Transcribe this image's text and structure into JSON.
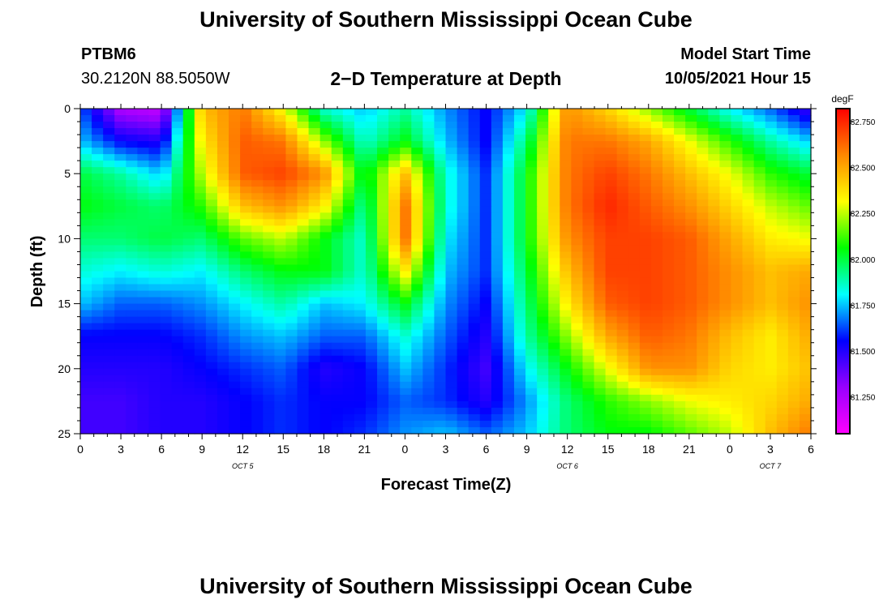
{
  "header": {
    "title": "University of Southern Mississippi Ocean Cube",
    "station_id": "PTBM6",
    "coords": "30.2120N  88.5050W",
    "plot_title": "2−D Temperature at Depth",
    "start_label": "Model Start Time",
    "start_value": "10/05/2021 Hour 15"
  },
  "footer": {
    "title": "University of Southern Mississippi Ocean Cube"
  },
  "chart_data": {
    "type": "heatmap",
    "xlabel": "Forecast Time(Z)",
    "ylabel": "Depth (ft)",
    "x_tick_labels": [
      "0",
      "3",
      "6",
      "9",
      "12",
      "15",
      "18",
      "21",
      "0",
      "3",
      "6",
      "9",
      "12",
      "15",
      "18",
      "21",
      "0",
      "3",
      "6"
    ],
    "x_ticks_hours": [
      0,
      3,
      6,
      9,
      12,
      15,
      18,
      21,
      24,
      27,
      30,
      33,
      36,
      39,
      42,
      45,
      48,
      51,
      54
    ],
    "date_labels": [
      {
        "label": "OCT 5",
        "hour": 12
      },
      {
        "label": "OCT 6",
        "hour": 36
      },
      {
        "label": "OCT 7",
        "hour": 51
      }
    ],
    "xlim_hours": [
      0,
      54
    ],
    "y_ticks": [
      0,
      5,
      10,
      15,
      20,
      25
    ],
    "ylim": [
      25,
      0
    ],
    "colorbar": {
      "unit": "degF",
      "ticks": [
        81.25,
        81.5,
        81.75,
        82.0,
        82.25,
        82.5,
        82.75
      ],
      "tick_labels": [
        "81.250",
        "81.500",
        "81.750",
        "82.000",
        "82.250",
        "82.500",
        "82.750"
      ],
      "range": [
        81.05,
        82.82
      ],
      "colors": [
        "#ff00ff",
        "#9900ff",
        "#0000ff",
        "#00ffff",
        "#00ff00",
        "#ffff00",
        "#ff8800",
        "#ff0000"
      ]
    },
    "depths": [
      0,
      2.5,
      5,
      7.5,
      10,
      12.5,
      15,
      17.5,
      20,
      22.5,
      25
    ],
    "hours": [
      0,
      3,
      6,
      9,
      12,
      15,
      18,
      21,
      24,
      27,
      30,
      33,
      36,
      39,
      42,
      45,
      48,
      51,
      54
    ],
    "values": [
      [
        81.65,
        81.25,
        81.2,
        82.45,
        82.6,
        82.3,
        81.85,
        81.75,
        81.9,
        81.7,
        81.55,
        81.8,
        82.55,
        82.4,
        82.2,
        82.0,
        81.8,
        81.65,
        81.45
      ],
      [
        81.75,
        81.55,
        81.5,
        82.35,
        82.65,
        82.6,
        82.2,
        81.85,
        82.05,
        81.75,
        81.55,
        81.95,
        82.6,
        82.6,
        82.5,
        82.3,
        82.1,
        81.9,
        81.75
      ],
      [
        82.0,
        81.9,
        81.75,
        82.25,
        82.65,
        82.7,
        82.55,
        82.0,
        82.45,
        81.85,
        81.6,
        82.05,
        82.6,
        82.7,
        82.6,
        82.45,
        82.3,
        82.1,
        82.0
      ],
      [
        82.05,
        82.0,
        81.95,
        82.1,
        82.45,
        82.55,
        82.35,
        81.9,
        82.6,
        81.85,
        81.6,
        82.05,
        82.6,
        82.75,
        82.65,
        82.55,
        82.4,
        82.25,
        82.15
      ],
      [
        81.95,
        81.95,
        82.0,
        81.95,
        82.15,
        82.25,
        82.05,
        81.85,
        82.6,
        81.8,
        81.6,
        82.05,
        82.55,
        82.7,
        82.7,
        82.65,
        82.5,
        82.35,
        82.3
      ],
      [
        81.85,
        81.8,
        81.85,
        81.8,
        81.95,
        82.05,
        82.05,
        81.85,
        82.35,
        81.75,
        81.6,
        82.0,
        82.45,
        82.7,
        82.7,
        82.65,
        82.55,
        82.45,
        82.5
      ],
      [
        81.75,
        81.65,
        81.65,
        81.7,
        81.8,
        81.9,
        81.75,
        81.8,
        82.05,
        81.7,
        81.55,
        81.95,
        82.35,
        82.65,
        82.7,
        82.65,
        82.55,
        82.45,
        82.55
      ],
      [
        81.55,
        81.55,
        81.55,
        81.6,
        81.7,
        81.75,
        81.65,
        81.65,
        81.85,
        81.65,
        81.5,
        81.9,
        82.2,
        82.5,
        82.65,
        82.6,
        82.45,
        82.35,
        82.5
      ],
      [
        81.5,
        81.5,
        81.5,
        81.55,
        81.6,
        81.65,
        81.5,
        81.55,
        81.75,
        81.6,
        81.45,
        81.8,
        82.05,
        82.3,
        82.55,
        82.55,
        82.4,
        82.35,
        82.45
      ],
      [
        81.45,
        81.45,
        81.5,
        81.5,
        81.55,
        81.6,
        81.55,
        81.55,
        81.65,
        81.6,
        81.5,
        81.7,
        81.95,
        82.1,
        82.2,
        82.3,
        82.35,
        82.4,
        82.5
      ],
      [
        81.45,
        81.45,
        81.5,
        81.5,
        81.55,
        81.6,
        81.55,
        81.6,
        81.7,
        81.75,
        81.65,
        81.75,
        81.95,
        82.05,
        82.05,
        82.15,
        82.25,
        82.45,
        82.6
      ]
    ]
  }
}
